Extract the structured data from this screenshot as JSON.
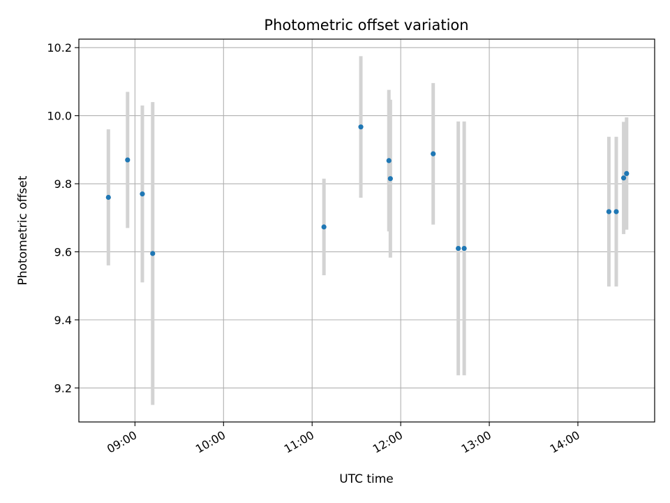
{
  "chart_data": {
    "type": "scatter",
    "title": "Photometric offset variation",
    "xlabel": "UTC time",
    "ylabel": "Photometric offset",
    "xlim": [
      "08:22",
      "14:52"
    ],
    "ylim": [
      9.1,
      10.225
    ],
    "grid": true,
    "xticks": [
      "09:00",
      "10:00",
      "11:00",
      "12:00",
      "13:00",
      "14:00"
    ],
    "yticks": [
      9.2,
      9.4,
      9.6,
      9.8,
      10.0,
      10.2
    ],
    "point_color": "#1f77b4",
    "errorbar_color": "#d3d3d3",
    "points": [
      {
        "x": "08:42",
        "y": 9.76,
        "err": 0.2
      },
      {
        "x": "08:55",
        "y": 9.87,
        "err": 0.2
      },
      {
        "x": "09:05",
        "y": 9.77,
        "err": 0.26
      },
      {
        "x": "09:12",
        "y": 9.595,
        "err": 0.445
      },
      {
        "x": "11:08",
        "y": 9.673,
        "err": 0.142
      },
      {
        "x": "11:33",
        "y": 9.967,
        "err": 0.208
      },
      {
        "x": "11:52",
        "y": 9.868,
        "err": 0.208
      },
      {
        "x": "11:53",
        "y": 9.815,
        "err": 0.232
      },
      {
        "x": "12:22",
        "y": 9.888,
        "err": 0.208
      },
      {
        "x": "12:39",
        "y": 9.61,
        "err": 0.373
      },
      {
        "x": "12:43",
        "y": 9.61,
        "err": 0.373
      },
      {
        "x": "14:21",
        "y": 9.718,
        "err": 0.22
      },
      {
        "x": "14:26",
        "y": 9.718,
        "err": 0.22
      },
      {
        "x": "14:31",
        "y": 9.817,
        "err": 0.165
      },
      {
        "x": "14:33",
        "y": 9.83,
        "err": 0.165
      }
    ]
  }
}
